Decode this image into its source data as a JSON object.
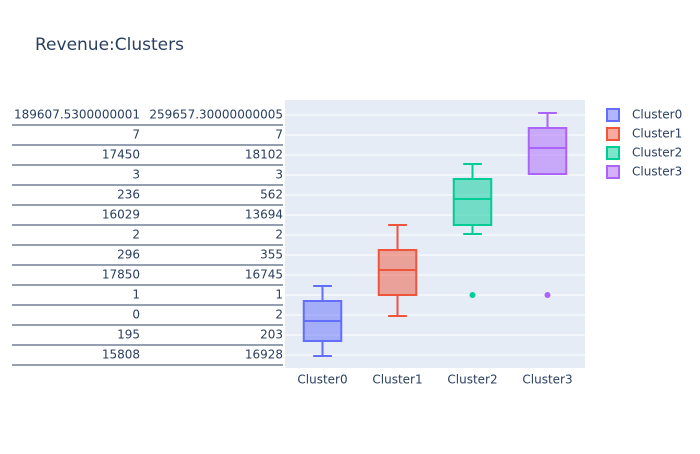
{
  "chart_data": {
    "type": "box",
    "title": "Revenue:Clusters",
    "categories": [
      "Cluster0",
      "Cluster1",
      "Cluster2",
      "Cluster3"
    ],
    "ylim": [
      -0.65,
      12.75
    ],
    "yticks": [
      {
        "value": 0,
        "label": [
          "15808",
          "16928"
        ]
      },
      {
        "value": 1,
        "label": [
          "195",
          "203"
        ]
      },
      {
        "value": 2,
        "label": [
          "0",
          "2"
        ]
      },
      {
        "value": 3,
        "label": [
          "1",
          "1"
        ]
      },
      {
        "value": 4,
        "label": [
          "17850",
          "16745"
        ]
      },
      {
        "value": 5,
        "label": [
          "296",
          "355"
        ]
      },
      {
        "value": 6,
        "label": [
          "2",
          "2"
        ]
      },
      {
        "value": 7,
        "label": [
          "16029",
          "13694"
        ]
      },
      {
        "value": 8,
        "label": [
          "236",
          "562"
        ]
      },
      {
        "value": 9,
        "label": [
          "3",
          "3"
        ]
      },
      {
        "value": 10,
        "label": [
          "17450",
          "18102"
        ]
      },
      {
        "value": 11,
        "label": [
          "7",
          "7"
        ]
      },
      {
        "value": 12,
        "label": [
          "189607.5300000001",
          "259657.30000000005"
        ]
      }
    ],
    "grid": true,
    "legend": "right",
    "series": [
      {
        "name": "Cluster0",
        "color": "#636efa",
        "lowerfence": -0.05,
        "q1": 0.7,
        "median": 1.7,
        "q3": 2.7,
        "upperfence": 3.45,
        "outliers": []
      },
      {
        "name": "Cluster1",
        "color": "#ef553b",
        "lowerfence": 1.95,
        "q1": 3.0,
        "median": 4.25,
        "q3": 5.25,
        "upperfence": 6.5,
        "outliers": []
      },
      {
        "name": "Cluster2",
        "color": "#00cc96",
        "lowerfence": 6.05,
        "q1": 6.5,
        "median": 7.8,
        "q3": 8.8,
        "upperfence": 9.55,
        "outliers": [
          3.0
        ]
      },
      {
        "name": "Cluster3",
        "color": "#ab63fa",
        "lowerfence": 9.05,
        "q1": 9.05,
        "median": 10.35,
        "q3": 11.35,
        "upperfence": 12.1,
        "outliers": [
          3.0
        ]
      }
    ]
  }
}
